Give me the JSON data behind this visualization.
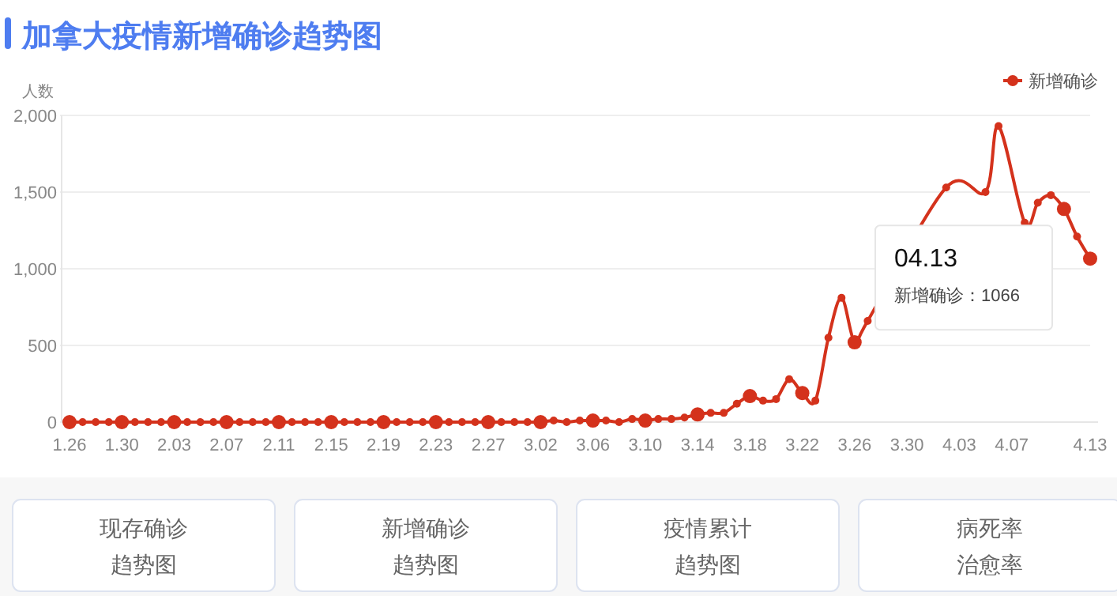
{
  "chart_data": {
    "type": "line",
    "title": "加拿大疫情新增确诊趋势图",
    "ylabel": "人数",
    "categories": [
      "1.26",
      null,
      null,
      null,
      "1.30",
      null,
      null,
      null,
      "2.03",
      null,
      null,
      null,
      "2.07",
      null,
      null,
      null,
      "2.11",
      null,
      null,
      null,
      "2.15",
      null,
      null,
      null,
      "2.19",
      null,
      null,
      null,
      "2.23",
      null,
      null,
      null,
      "2.27",
      null,
      null,
      null,
      "3.02",
      null,
      null,
      null,
      "3.06",
      null,
      null,
      null,
      "3.10",
      null,
      null,
      null,
      "3.14",
      null,
      null,
      null,
      "3.18",
      null,
      null,
      null,
      "3.22",
      null,
      null,
      null,
      "3.26",
      null,
      null,
      null,
      "3.30",
      null,
      null,
      null,
      "4.03",
      null,
      null,
      null,
      "4.07",
      null,
      null,
      null,
      null,
      null,
      "4.13"
    ],
    "series": [
      {
        "name": "新增确诊",
        "color": "#d4321c",
        "values": [
          0,
          0,
          0,
          0,
          0,
          0,
          0,
          0,
          0,
          0,
          0,
          0,
          0,
          0,
          0,
          0,
          0,
          0,
          0,
          0,
          0,
          0,
          0,
          0,
          0,
          0,
          0,
          0,
          0,
          0,
          0,
          0,
          0,
          0,
          0,
          0,
          0,
          10,
          0,
          10,
          10,
          10,
          0,
          20,
          10,
          20,
          20,
          30,
          50,
          60,
          60,
          120,
          170,
          140,
          150,
          280,
          190,
          140,
          550,
          810,
          520,
          660,
          null,
          null,
          null,
          null,
          null,
          1530,
          null,
          null,
          1500,
          1930,
          null,
          1300,
          1430,
          1480,
          1390,
          1210,
          1066
        ]
      }
    ],
    "ylim": [
      0,
      2000
    ],
    "yticks": [
      {
        "value": 0,
        "label": "0"
      },
      {
        "value": 500,
        "label": "500"
      },
      {
        "value": 1000,
        "label": "1,000"
      },
      {
        "value": 1500,
        "label": "1,500"
      },
      {
        "value": 2000,
        "label": "2,000"
      }
    ],
    "grid": "y",
    "legend": "top right",
    "marker": "circle",
    "annotations": [
      "04.13",
      "新增确诊：1066",
      "现存确诊趋势图",
      "新增确诊趋势图",
      "疫情累计趋势图",
      "病死率治愈率"
    ]
  }
}
